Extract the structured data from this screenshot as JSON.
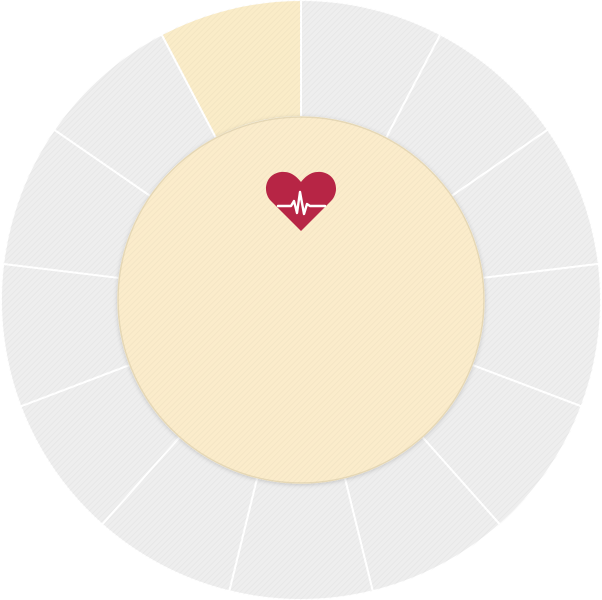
{
  "wheel": {
    "segment_count": 13,
    "selected_segment_index": 12,
    "segment_color": "#eeeeee",
    "segment_selected_color": "#faecc8",
    "divider_color": "#ffffff",
    "center_color": "#fbeccb",
    "center_border_color": "#e6d8b6"
  },
  "center": {
    "icon": "heart-pulse-icon",
    "icon_color": "#b72545",
    "pulse_color": "#ffffff"
  }
}
